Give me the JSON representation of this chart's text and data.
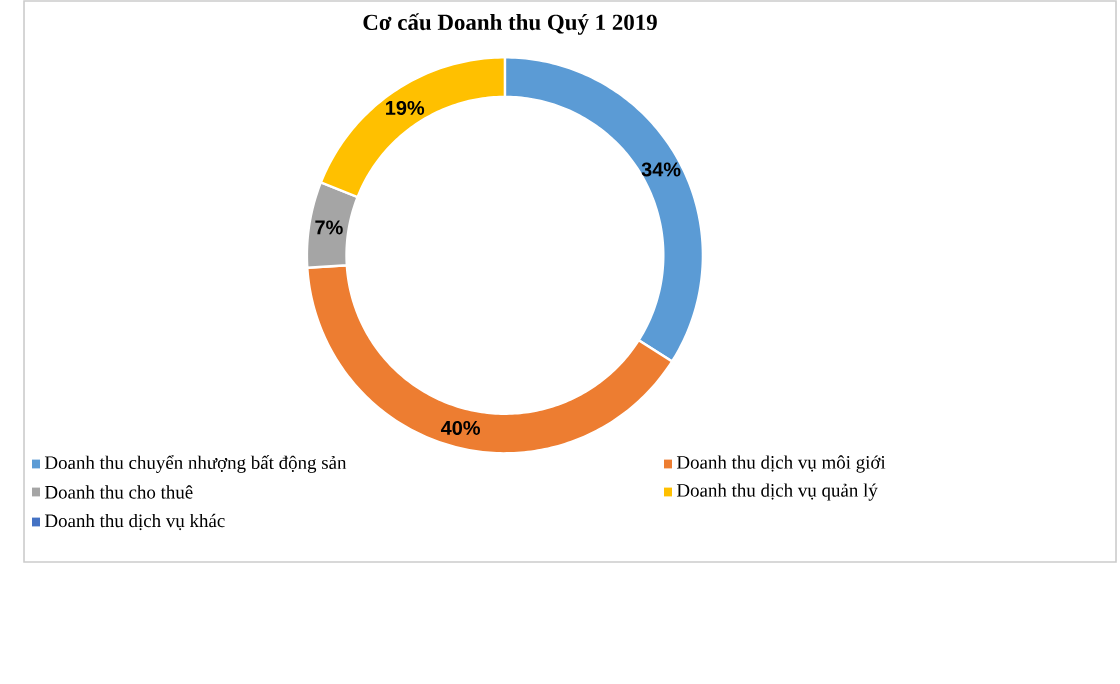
{
  "chart_data": {
    "type": "donut",
    "title": "Cơ cấu Doanh thu Quý 1 2019",
    "categories": [
      "Doanh thu chuyển nhượng bất động sản",
      "Doanh thu dịch vụ môi giới",
      "Doanh thu cho thuê",
      "Doanh thu dịch vụ quản lý",
      "Doanh thu dịch vụ khác"
    ],
    "values": [
      34,
      40,
      7,
      19,
      0
    ],
    "value_labels": [
      "34%",
      "40%",
      "7%",
      "19%",
      null
    ],
    "colors": [
      "#5b9bd5",
      "#ed7d31",
      "#a5a5a5",
      "#ffc000",
      "#4472c4"
    ],
    "legend": "bottom"
  }
}
